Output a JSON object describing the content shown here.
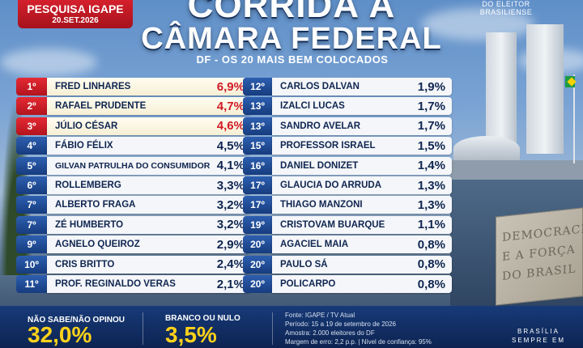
{
  "header": {
    "badge_title": "PESQUISA IGAPE",
    "badge_date": "20.SET.2026",
    "title_line1": "CORRIDA À",
    "title_line2": "CÂMARA FEDERAL",
    "subtitle": "DF - OS 20 MAIS BEM COLOCADOS",
    "logo_line1": "DO ELEITOR",
    "logo_line2": "BRASILIENSE"
  },
  "ranking_left": [
    {
      "pos": "1º",
      "name": "FRED LINHARES",
      "pct": "6,9%",
      "highlight": true
    },
    {
      "pos": "2º",
      "name": "RAFAEL PRUDENTE",
      "pct": "4,7%",
      "highlight": true
    },
    {
      "pos": "3º",
      "name": "JÚLIO CÉSAR",
      "pct": "4,6%",
      "highlight": true
    },
    {
      "pos": "4º",
      "name": "FÁBIO FÉLIX",
      "pct": "4,5%",
      "highlight": false
    },
    {
      "pos": "5º",
      "name": "GILVAN PATRULHA DO CONSUMIDOR",
      "pct": "4,1%",
      "highlight": false
    },
    {
      "pos": "6º",
      "name": "ROLLEMBERG",
      "pct": "3,3%",
      "highlight": false
    },
    {
      "pos": "7º",
      "name": "ALBERTO FRAGA",
      "pct": "3,2%",
      "highlight": false
    },
    {
      "pos": "7º",
      "name": "ZÉ HUMBERTO",
      "pct": "3,2%",
      "highlight": false
    },
    {
      "pos": "9º",
      "name": "AGNELO QUEIROZ",
      "pct": "2,9%",
      "highlight": false
    },
    {
      "pos": "10º",
      "name": "CRIS BRITTO",
      "pct": "2,4%",
      "highlight": false
    },
    {
      "pos": "11º",
      "name": "PROF. REGINALDO VERAS",
      "pct": "2,1%",
      "highlight": false
    }
  ],
  "ranking_right": [
    {
      "pos": "12º",
      "name": "CARLOS DALVAN",
      "pct": "1,9%"
    },
    {
      "pos": "13º",
      "name": "IZALCI LUCAS",
      "pct": "1,7%"
    },
    {
      "pos": "13º",
      "name": "SANDRO AVELAR",
      "pct": "1,7%"
    },
    {
      "pos": "15º",
      "name": "PROFESSOR ISRAEL",
      "pct": "1,5%"
    },
    {
      "pos": "16º",
      "name": "DANIEL DONIZET",
      "pct": "1,4%"
    },
    {
      "pos": "17º",
      "name": "GLAUCIA DO ARRUDA",
      "pct": "1,3%"
    },
    {
      "pos": "17º",
      "name": "THIAGO MANZONI",
      "pct": "1,3%"
    },
    {
      "pos": "19º",
      "name": "CRISTOVAM BUARQUE",
      "pct": "1,1%"
    },
    {
      "pos": "20º",
      "name": "AGACIEL MAIA",
      "pct": "0,8%"
    },
    {
      "pos": "20º",
      "name": "PAULO SÁ",
      "pct": "0,8%"
    },
    {
      "pos": "20º",
      "name": "POLICARPO",
      "pct": "0,8%"
    }
  ],
  "footer": {
    "undecided_label": "NÃO SABE/NÃO OPINOU",
    "undecided_value": "32,0%",
    "blank_label": "BRANCO OU NULO",
    "blank_value": "3,5%",
    "info": [
      "Fonte: IGAPE / TV Atual",
      "Período: 15 a 19 de setembro de 2026",
      "Amostra: 2.000 eleitores do DF",
      "Margem de erro: 2,2 p.p. | Nível de confiança: 95%"
    ],
    "tag_line1": "BRASÍLIA",
    "tag_line2": "SEMPRE EM"
  },
  "monument": {
    "line1": "DEMOCRACIA",
    "line2": "E A FORÇA",
    "line3": "DO BRASIL"
  },
  "colors": {
    "accent_red": "#d11a26",
    "accent_blue": "#173c7e",
    "accent_yellow": "#ffd21a"
  }
}
